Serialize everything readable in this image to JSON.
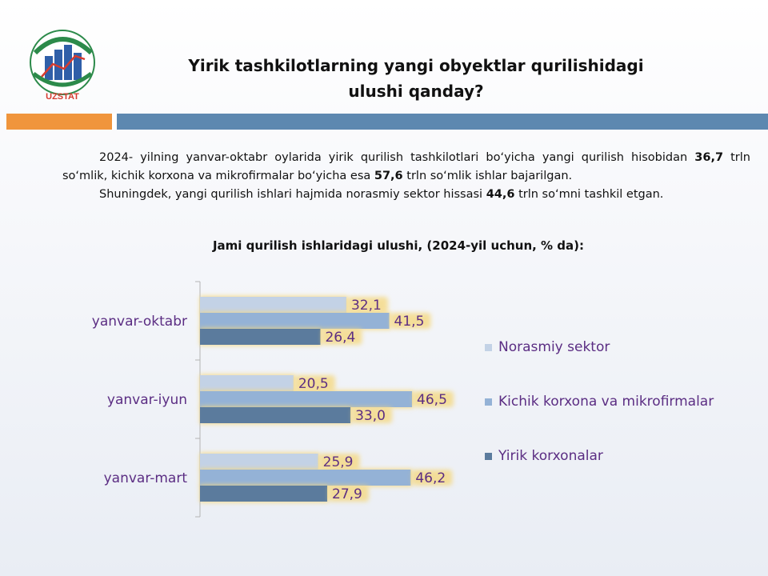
{
  "header": {
    "title_line1": "Yirik tashkilotlarning yangi obyektlar qurilishidagi",
    "title_line2": "ulushi qanday?",
    "logo_text": "UZSTAT"
  },
  "intro": {
    "p1_a": "2024- yilning yanvar-oktabr oylarida yirik qurilish tashkilotlari bo‘yicha yangi qurilish hisobidan ",
    "p1_b": "36,7",
    "p1_c": " trln so‘mlik, kichik korxona va mikrofirmalar bo‘yicha esa ",
    "p1_d": "57,6",
    "p1_e": " trln so‘mlik ishlar bajarilgan.",
    "p2_a": "Shuningdek, yangi qurilish ishlari hajmida norasmiy sektor hissasi ",
    "p2_b": "44,6",
    "p2_c": " trln so‘mni tashkil etgan."
  },
  "chart_data": {
    "type": "bar",
    "orientation": "horizontal",
    "title": "Jami qurilish ishlaridagi ulushi, (2024-yil uchun, % da):",
    "categories": [
      "yanvar-oktabr",
      "yanvar-iyun",
      "yanvar-mart"
    ],
    "series": [
      {
        "name": "Norasmiy sektor",
        "values": [
          32.1,
          20.5,
          25.9
        ],
        "labels": [
          "32,1",
          "20,5",
          "25,9"
        ],
        "color": "#c3d2e6"
      },
      {
        "name": "Kichik korxona va mikrofirmalar",
        "values": [
          41.5,
          46.5,
          46.2
        ],
        "labels": [
          "41,5",
          "46,5",
          "46,2"
        ],
        "color": "#94b2d6"
      },
      {
        "name": "Yirik korxonalar",
        "values": [
          26.4,
          33.0,
          27.9
        ],
        "labels": [
          "26,4",
          "33,0",
          "27,9"
        ],
        "color": "#5b7b9d"
      }
    ],
    "xlim": [
      0,
      50
    ],
    "grid": false,
    "legend": "right",
    "label_color": "#5b2d83",
    "category_label_color": "#5b2d83",
    "glow_color": "#f5d77a"
  }
}
